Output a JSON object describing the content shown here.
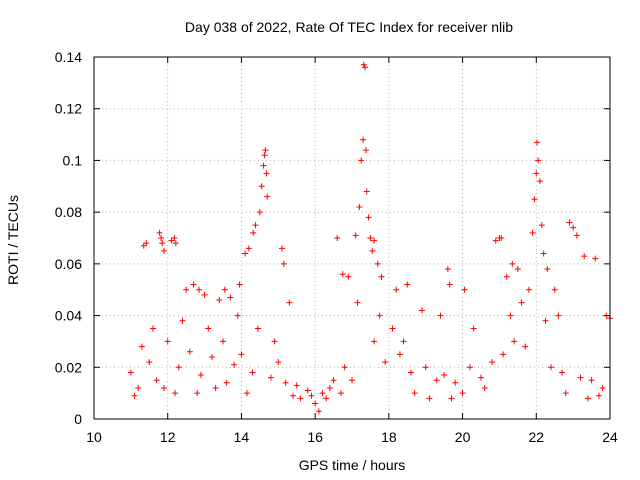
{
  "chart_data": {
    "type": "scatter",
    "title": "Day 038 of 2022, Rate Of TEC Index for receiver nlib",
    "xlabel": "GPS time / hours",
    "ylabel": "ROTI / TECUs",
    "xlim": [
      10,
      24
    ],
    "ylim": [
      0,
      0.14
    ],
    "x_ticks": [
      "10",
      "12",
      "14",
      "16",
      "18",
      "20",
      "22",
      "24"
    ],
    "y_ticks": [
      "0",
      "0.02",
      "0.04",
      "0.06",
      "0.08",
      "0.1",
      "0.12",
      "0.14"
    ],
    "grid": true,
    "marker": "+",
    "colors": {
      "points": "#ff0000",
      "grid": "#b0b0b0",
      "axes": "#000000"
    },
    "series": [
      {
        "x": [
          11.35,
          11.42,
          11.78,
          11.82,
          11.85,
          11.9,
          12.1,
          12.18,
          12.22,
          12.5,
          12.7,
          12.85,
          13.0,
          13.4,
          13.55,
          13.7,
          13.95,
          14.1,
          14.2,
          14.32,
          14.38,
          14.5,
          14.55,
          14.6,
          14.63,
          14.65,
          14.68,
          14.7,
          15.1,
          15.15,
          15.3,
          16.6,
          16.75,
          16.9,
          17.1,
          17.2,
          17.25,
          17.3,
          17.32,
          17.35,
          17.38,
          17.4,
          17.45,
          17.5,
          17.55,
          17.6,
          17.7,
          17.8,
          18.2,
          18.5,
          18.9,
          19.6,
          19.65,
          20.05,
          20.9,
          21.0,
          21.05,
          21.2,
          21.35,
          21.5,
          21.8,
          21.9,
          21.95,
          22.0,
          22.02,
          22.05,
          22.1,
          22.15,
          22.2,
          22.3,
          22.5,
          22.6,
          22.9,
          23.0,
          23.1,
          23.3,
          23.6,
          23.9,
          24.0,
          11.0,
          11.2,
          11.5,
          11.7,
          12.0,
          12.3,
          12.6,
          12.9,
          13.2,
          13.5,
          13.8,
          14.0,
          14.3,
          14.8,
          15.2,
          15.5,
          15.8,
          16.0,
          16.2,
          16.4,
          16.8,
          17.0,
          17.6,
          17.9,
          18.3,
          18.6,
          19.0,
          19.3,
          19.5,
          19.8,
          20.2,
          20.5,
          20.8,
          21.1,
          21.4,
          21.7,
          22.4,
          22.7,
          23.2,
          23.5,
          23.8,
          11.1,
          11.3,
          11.6,
          11.9,
          12.2,
          12.4,
          12.8,
          13.1,
          13.3,
          13.6,
          13.9,
          14.15,
          14.45,
          14.9,
          15.0,
          15.4,
          15.6,
          15.9,
          16.1,
          16.3,
          16.5,
          16.7,
          17.15,
          17.75,
          18.1,
          18.4,
          18.7,
          19.1,
          19.4,
          19.7,
          20.0,
          20.3,
          20.6,
          21.3,
          21.6,
          22.25,
          22.8,
          23.4,
          23.7
        ],
        "y": [
          0.067,
          0.068,
          0.072,
          0.07,
          0.068,
          0.065,
          0.069,
          0.07,
          0.068,
          0.05,
          0.052,
          0.05,
          0.048,
          0.046,
          0.05,
          0.047,
          0.052,
          0.064,
          0.066,
          0.072,
          0.075,
          0.08,
          0.09,
          0.098,
          0.102,
          0.104,
          0.095,
          0.086,
          0.066,
          0.06,
          0.045,
          0.07,
          0.056,
          0.055,
          0.071,
          0.082,
          0.1,
          0.108,
          0.137,
          0.136,
          0.104,
          0.088,
          0.078,
          0.07,
          0.065,
          0.069,
          0.06,
          0.055,
          0.05,
          0.052,
          0.042,
          0.058,
          0.052,
          0.05,
          0.069,
          0.07,
          0.07,
          0.055,
          0.06,
          0.058,
          0.05,
          0.072,
          0.085,
          0.095,
          0.107,
          0.1,
          0.092,
          0.075,
          0.064,
          0.058,
          0.05,
          0.04,
          0.076,
          0.074,
          0.071,
          0.063,
          0.062,
          0.04,
          0.039,
          0.018,
          0.012,
          0.022,
          0.015,
          0.03,
          0.02,
          0.026,
          0.017,
          0.024,
          0.03,
          0.021,
          0.025,
          0.018,
          0.016,
          0.014,
          0.013,
          0.011,
          0.006,
          0.01,
          0.012,
          0.02,
          0.015,
          0.03,
          0.022,
          0.025,
          0.018,
          0.02,
          0.015,
          0.017,
          0.014,
          0.02,
          0.016,
          0.022,
          0.025,
          0.03,
          0.028,
          0.02,
          0.018,
          0.016,
          0.015,
          0.012,
          0.009,
          0.028,
          0.035,
          0.012,
          0.01,
          0.038,
          0.01,
          0.035,
          0.012,
          0.014,
          0.04,
          0.01,
          0.035,
          0.03,
          0.022,
          0.009,
          0.008,
          0.009,
          0.003,
          0.008,
          0.015,
          0.01,
          0.045,
          0.04,
          0.035,
          0.03,
          0.01,
          0.008,
          0.04,
          0.008,
          0.01,
          0.035,
          0.012,
          0.04,
          0.045,
          0.038,
          0.01,
          0.008,
          0.009
        ]
      }
    ]
  }
}
